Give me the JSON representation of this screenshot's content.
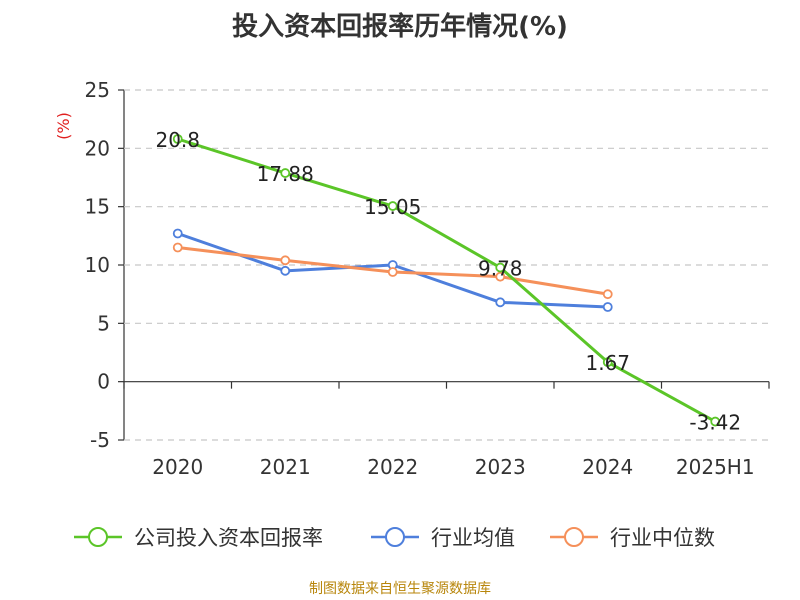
{
  "chart_data": {
    "type": "line",
    "title": "投入资本回报率历年情况(%)",
    "ylabel": "(%)",
    "categories": [
      "2020",
      "2021",
      "2022",
      "2023",
      "2024",
      "2025H1"
    ],
    "ylim": [
      -5,
      25
    ],
    "yticks": [
      -5,
      0,
      5,
      10,
      15,
      20,
      25
    ],
    "grid": true,
    "legend_position": "bottom",
    "series": [
      {
        "name": "公司投入资本回报率",
        "color": "#5bc528",
        "values": [
          20.8,
          17.88,
          15.05,
          9.78,
          1.67,
          -3.42
        ],
        "labels": [
          "20.8",
          "17.88",
          "15.05",
          "9.78",
          "1.67",
          "-3.42"
        ]
      },
      {
        "name": "行业均值",
        "color": "#4e7fdc",
        "values": [
          12.7,
          9.5,
          10.0,
          6.8,
          6.4,
          null
        ]
      },
      {
        "name": "行业中位数",
        "color": "#f5905a",
        "values": [
          11.5,
          10.4,
          9.4,
          9.0,
          7.5,
          null
        ]
      }
    ]
  },
  "footer": {
    "source": "制图数据来自恒生聚源数据库"
  }
}
